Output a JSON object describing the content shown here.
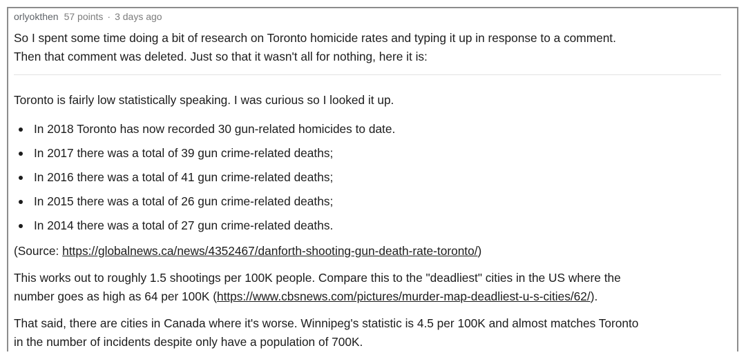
{
  "comment": {
    "author": "orlyokthen",
    "points": "57 points",
    "separator": "·",
    "age": "3 days ago"
  },
  "intro": {
    "line1": "So I spent some time doing a bit of research on Toronto homicide rates and typing it up in response to a comment.",
    "line2": "Then that comment was deleted. Just so that it wasn't all for nothing, here it is:"
  },
  "body": {
    "lead": "Toronto is fairly low statistically speaking. I was curious so I looked it up.",
    "bullets": [
      "In 2018 Toronto has now recorded 30 gun-related homicides to date.",
      "In 2017 there was a total of 39 gun crime-related deaths;",
      "In 2016 there was a total of 41 gun crime-related deaths;",
      "In 2015 there was a total of 26 gun crime-related deaths;",
      "In 2014 there was a total of 27 gun crime-related deaths."
    ],
    "source_prefix": "(Source: ",
    "source_link": "https://globalnews.ca/news/4352467/danforth-shooting-gun-death-rate-toronto/",
    "source_suffix": ")",
    "compare_line1": "This works out to roughly 1.5 shootings per 100K people. Compare this to the \"deadliest\" cities in the US where the",
    "compare_line2_prefix": "number goes as high as 64 per 100K (",
    "compare_link": "https://www.cbsnews.com/pictures/murder-map-deadliest-u-s-cities/62/",
    "compare_line2_suffix": ").",
    "canada_line1": "That said, there are cities in Canada where it's worse. Winnipeg's statistic is 4.5 per 100K and almost matches Toronto",
    "canada_line2": "in the number of incidents despite only have a population of 700K."
  }
}
